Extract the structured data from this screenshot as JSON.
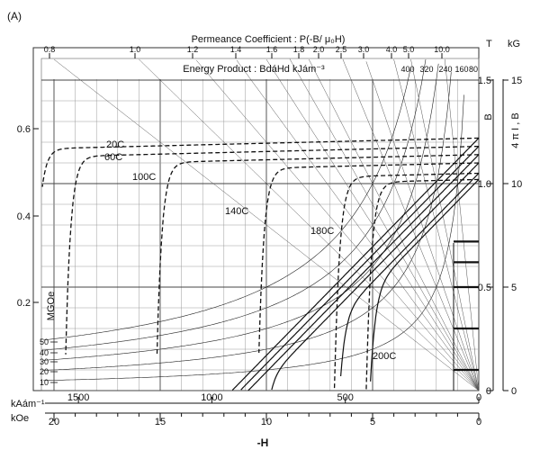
{
  "chart_data": {
    "type": "line",
    "panel_label": "(A)",
    "titles": {
      "permeance": "Permeance Coefficient : P(-B/ μ₀H)",
      "energy": "Energy Product : BdáHd  kJám⁻³",
      "mgoe": "MGOe",
      "x_axis": "-H",
      "right_axis": "4 π I , B"
    },
    "units": {
      "right_T": "T",
      "right_kG": "kG",
      "bottom_kAm": "kAám⁻¹",
      "bottom_kOe": "kOe",
      "right_small_B": "B"
    },
    "x_kAm_ticks": [
      {
        "value": 1500,
        "label": "1500"
      },
      {
        "value": 1000,
        "label": "1000"
      },
      {
        "value": 500,
        "label": "500"
      },
      {
        "value": 0,
        "label": "0"
      }
    ],
    "x_kOe_ticks": [
      {
        "value": 20,
        "label": "20"
      },
      {
        "value": 15,
        "label": "15"
      },
      {
        "value": 10,
        "label": "10"
      },
      {
        "value": 5,
        "label": "5"
      },
      {
        "value": 0,
        "label": "0"
      }
    ],
    "y_T_ticks": [
      {
        "value": 1.5,
        "label": "1.5"
      },
      {
        "value": 1.0,
        "label": "1.0"
      },
      {
        "value": 0.5,
        "label": "0.5"
      },
      {
        "value": 0,
        "label": "0"
      }
    ],
    "y_kG_ticks": [
      {
        "value": 15,
        "label": "15"
      },
      {
        "value": 10,
        "label": "10"
      },
      {
        "value": 5,
        "label": "5"
      },
      {
        "value": 0,
        "label": "0"
      }
    ],
    "y_left_ticks": [
      {
        "value": 0.6,
        "label": "0.6"
      },
      {
        "value": 0.4,
        "label": "0.4"
      },
      {
        "value": 0.2,
        "label": "0.2"
      }
    ],
    "permeance_ticks": [
      "0.8",
      "1.0",
      "1.2",
      "1.4",
      "1.6",
      "1.8",
      "2.0",
      "2.5",
      "3.0",
      "4.0",
      "5.0",
      "10.0"
    ],
    "energy_ticks": [
      "400",
      "320",
      "240",
      "160",
      "80"
    ],
    "mgoe_ticks": [
      "50",
      "40",
      "30",
      "20",
      "10"
    ],
    "temperatures": [
      "20C",
      "60C",
      "100C",
      "140C",
      "180C",
      "200C"
    ],
    "ranges": {
      "kOe": [
        20,
        0
      ],
      "kG": [
        0,
        15
      ]
    },
    "series": [
      {
        "name": "20C",
        "Br_kG": 12.2,
        "Hcj_kOe": 21.0
      },
      {
        "name": "60C",
        "Br_kG": 11.8,
        "Hcj_kOe": 19.5
      },
      {
        "name": "100C",
        "Br_kG": 11.4,
        "Hcj_kOe": 15.2
      },
      {
        "name": "140C",
        "Br_kG": 11.0,
        "Hcj_kOe": 10.4
      },
      {
        "name": "180C",
        "Br_kG": 10.5,
        "Hcj_kOe": 6.8
      },
      {
        "name": "200C",
        "Br_kG": 10.2,
        "Hcj_kOe": 5.3
      }
    ]
  }
}
